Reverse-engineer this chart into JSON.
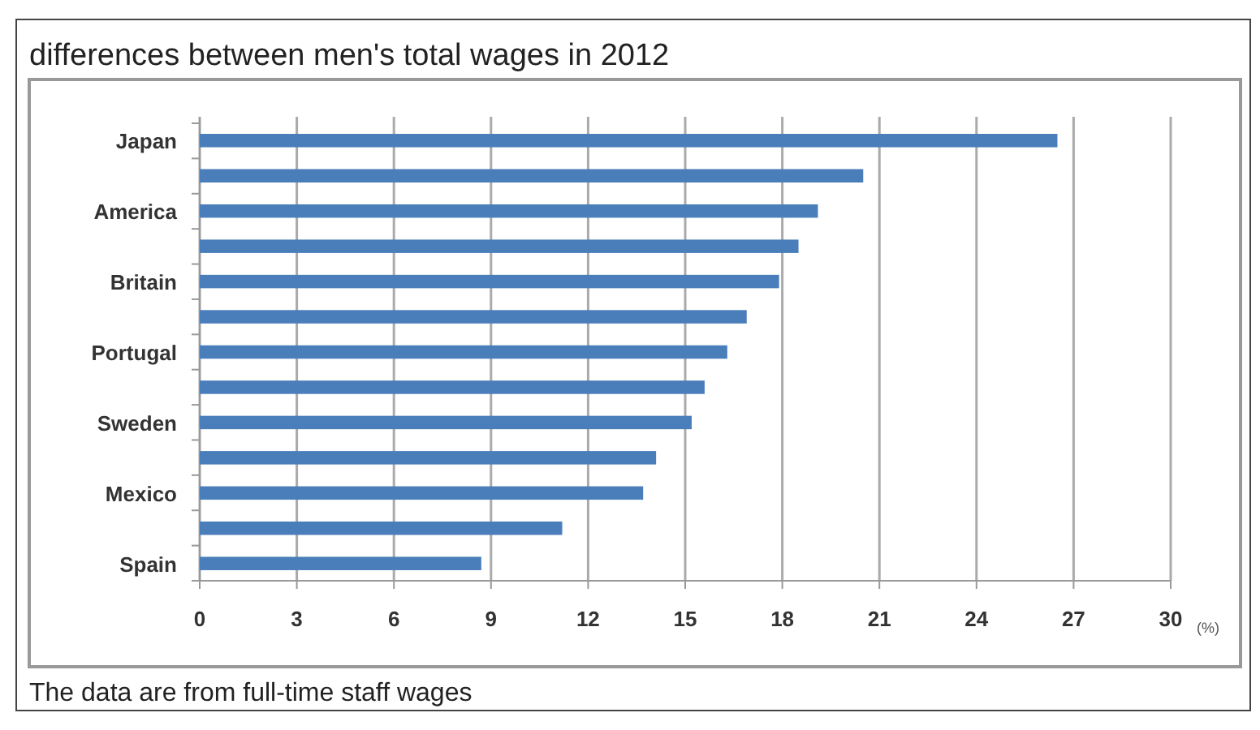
{
  "chart_data": {
    "type": "bar",
    "orientation": "horizontal",
    "title": "differences between men's total wages in 2012",
    "categories": [
      "Japan",
      null,
      "America",
      null,
      "Britain",
      null,
      "Portugal",
      null,
      "Sweden",
      null,
      "Mexico",
      null,
      "Spain"
    ],
    "values": [
      26.5,
      20.5,
      19.1,
      18.5,
      17.9,
      16.9,
      16.3,
      15.6,
      15.2,
      14.1,
      13.7,
      11.2,
      8.7
    ],
    "color": "#4a7ebb",
    "xlim": [
      0,
      30
    ],
    "xticks": [
      0,
      3,
      6,
      9,
      12,
      15,
      18,
      21,
      24,
      27,
      30
    ],
    "xlabel": "(%)",
    "grid": "x",
    "annotations": [
      "The data are from full-time staff wages"
    ]
  }
}
